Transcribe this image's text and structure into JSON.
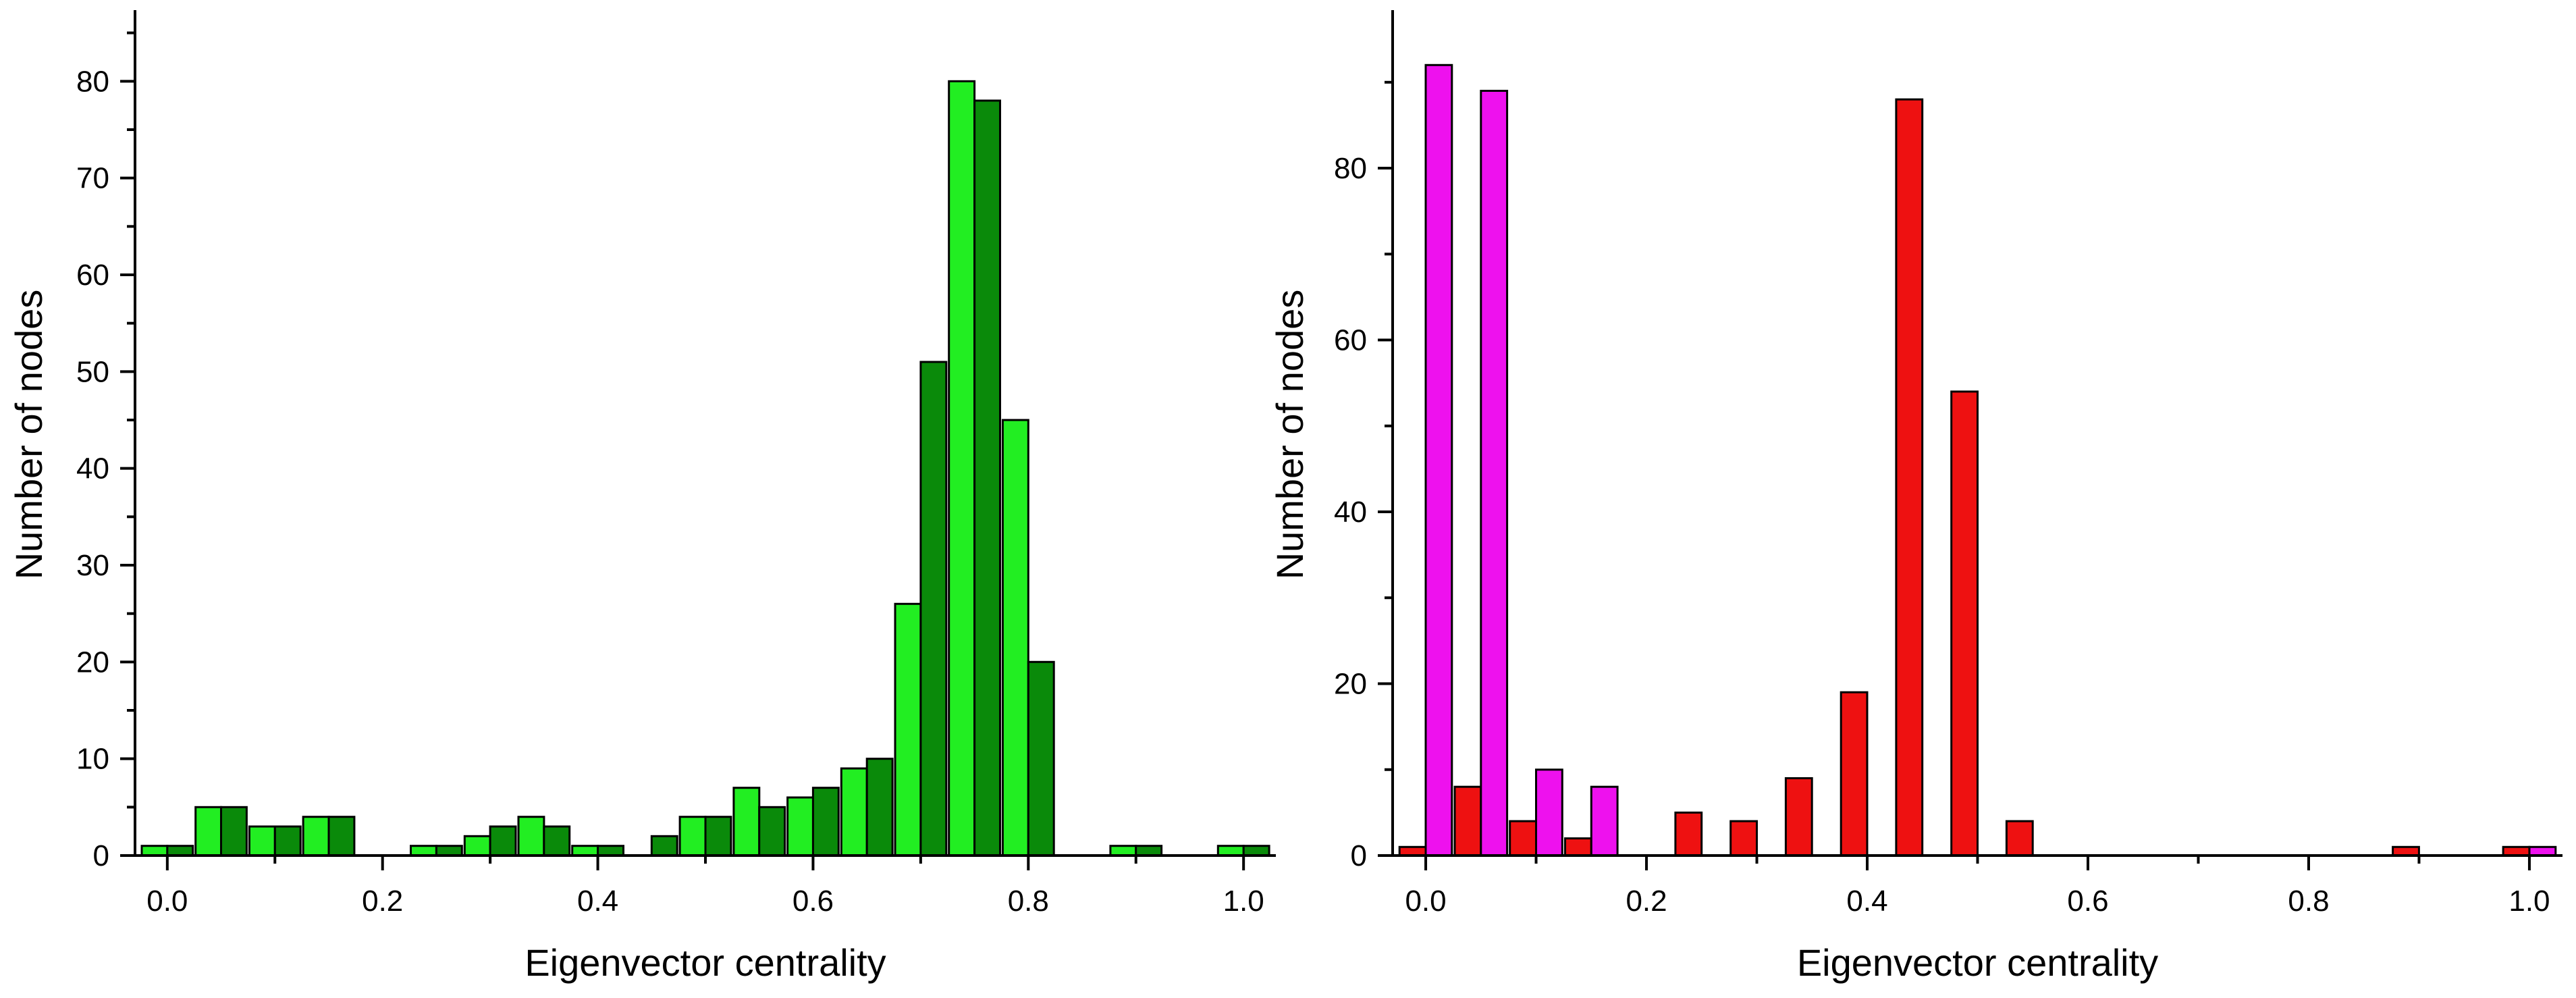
{
  "chart_data": [
    {
      "type": "bar",
      "title": "",
      "xlabel": "Eigenvector centrality",
      "ylabel": "Number of nodes",
      "xlim": [
        -0.03,
        1.03
      ],
      "ylim": [
        0,
        87
      ],
      "xticks": [
        "0.0",
        "0.2",
        "0.4",
        "0.6",
        "0.8",
        "1.0"
      ],
      "yticks": [
        "0",
        "10",
        "20",
        "30",
        "40",
        "50",
        "60",
        "70",
        "80"
      ],
      "grid": false,
      "legend": "none",
      "series": [
        {
          "color": "#22ee22",
          "points": [
            [
              0.0,
              1
            ],
            [
              0.05,
              5
            ],
            [
              0.1,
              3
            ],
            [
              0.15,
              4
            ],
            [
              0.25,
              1
            ],
            [
              0.3,
              2
            ],
            [
              0.35,
              4
            ],
            [
              0.4,
              1
            ],
            [
              0.5,
              4
            ],
            [
              0.55,
              7
            ],
            [
              0.6,
              6
            ],
            [
              0.65,
              9
            ],
            [
              0.7,
              26
            ],
            [
              0.75,
              80
            ],
            [
              0.8,
              45
            ],
            [
              0.9,
              1
            ],
            [
              1.0,
              1
            ]
          ]
        },
        {
          "color": "#0a8a0a",
          "points": [
            [
              0.0,
              1
            ],
            [
              0.05,
              5
            ],
            [
              0.1,
              3
            ],
            [
              0.15,
              4
            ],
            [
              0.25,
              1
            ],
            [
              0.3,
              3
            ],
            [
              0.35,
              3
            ],
            [
              0.4,
              1
            ],
            [
              0.45,
              2
            ],
            [
              0.5,
              4
            ],
            [
              0.55,
              5
            ],
            [
              0.6,
              7
            ],
            [
              0.65,
              10
            ],
            [
              0.7,
              51
            ],
            [
              0.75,
              78
            ],
            [
              0.8,
              20
            ],
            [
              0.9,
              1
            ],
            [
              1.0,
              1
            ]
          ]
        }
      ]
    },
    {
      "type": "bar",
      "title": "",
      "xlabel": "Eigenvector centrality",
      "ylabel": "Number of nodes",
      "xlim": [
        -0.03,
        1.03
      ],
      "ylim": [
        0,
        98
      ],
      "xticks": [
        "0.0",
        "0.2",
        "0.4",
        "0.6",
        "0.8",
        "1.0"
      ],
      "yticks": [
        "0",
        "20",
        "40",
        "60",
        "80"
      ],
      "grid": false,
      "legend": "none",
      "series": [
        {
          "color": "#ee1111",
          "points": [
            [
              0.0,
              1
            ],
            [
              0.05,
              8
            ],
            [
              0.1,
              4
            ],
            [
              0.15,
              2
            ],
            [
              0.25,
              5
            ],
            [
              0.3,
              4
            ],
            [
              0.35,
              9
            ],
            [
              0.4,
              19
            ],
            [
              0.45,
              88
            ],
            [
              0.5,
              54
            ],
            [
              0.55,
              4
            ],
            [
              0.9,
              1
            ],
            [
              1.0,
              1
            ]
          ]
        },
        {
          "color": "#ee11ee",
          "points": [
            [
              0.0,
              92
            ],
            [
              0.05,
              89
            ],
            [
              0.1,
              10
            ],
            [
              0.15,
              8
            ],
            [
              1.0,
              1
            ]
          ]
        }
      ]
    }
  ]
}
